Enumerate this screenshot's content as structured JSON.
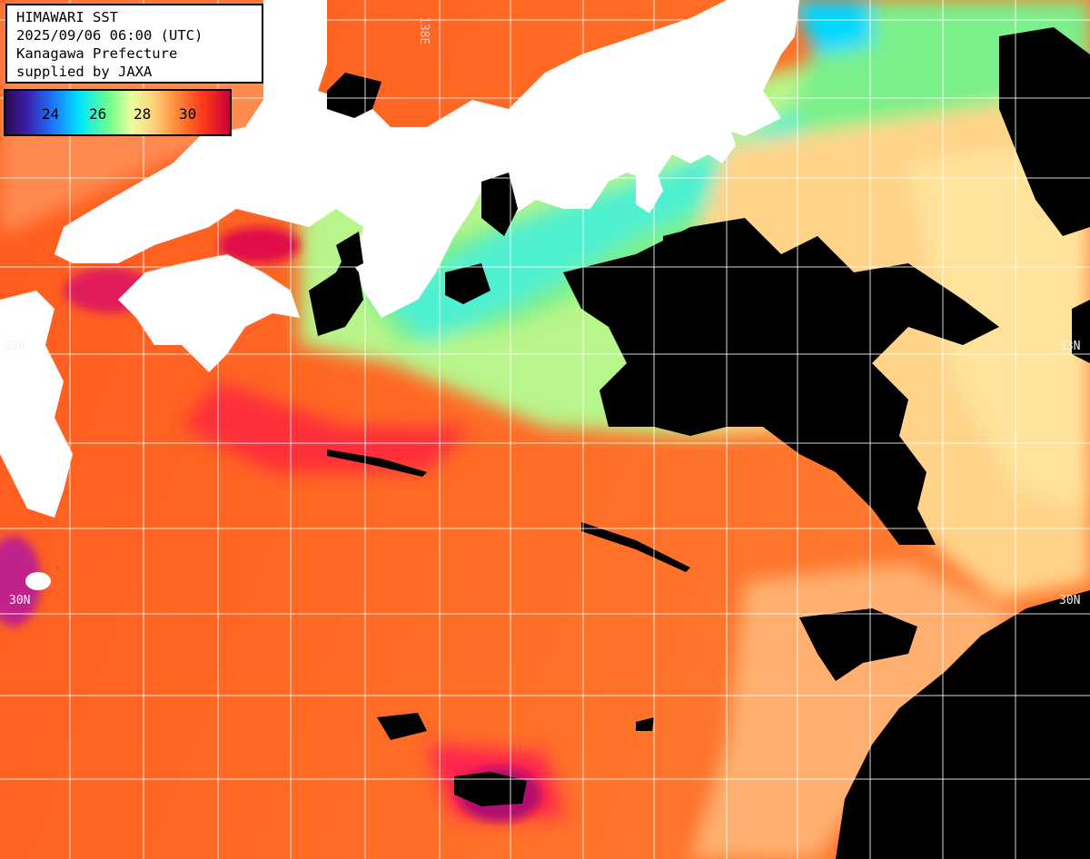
{
  "header": {
    "title": "HIMAWARI SST",
    "datetime": "2025/09/06 06:00 (UTC)",
    "region": "Kanagawa Prefecture",
    "credit": "supplied by JAXA"
  },
  "legend": {
    "ticks": [
      "24",
      "26",
      "28",
      "30"
    ],
    "colors": {
      "low": "#3a20b0",
      "mid_low": "#00e6ff",
      "mid": "#6cff8a",
      "mid_high": "#ffd27a",
      "high": "#ff3a18",
      "max": "#c8003a"
    }
  },
  "grid_labels": {
    "lat_33_left": "33N",
    "lat_33_right": "33N",
    "lat_30_left": "30N",
    "lat_30_right": "30N",
    "lon_top": "138E"
  },
  "colors": {
    "land": "#ffffff",
    "cloud": "#000000",
    "grid": "#ffffff"
  }
}
